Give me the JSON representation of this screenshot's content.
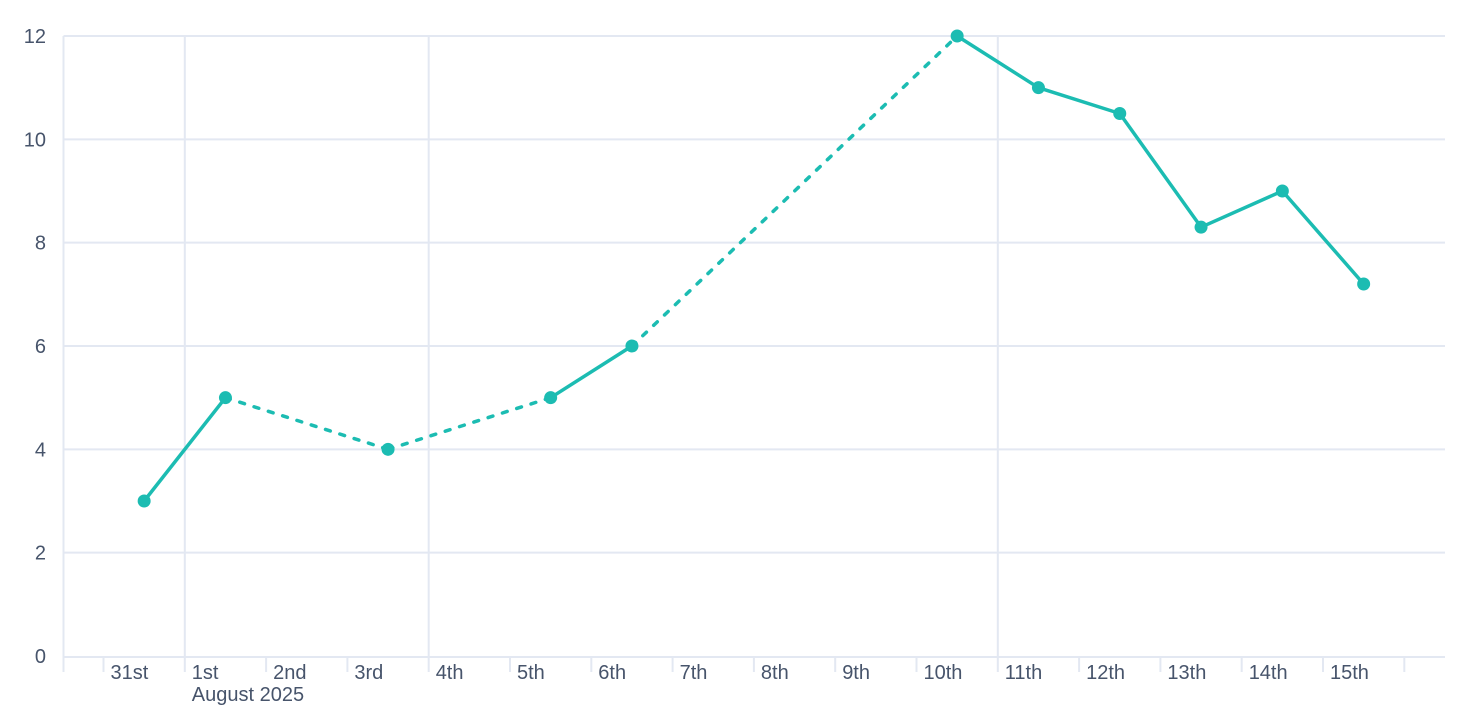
{
  "chart_data": {
    "type": "line",
    "title": "",
    "x_axis": {
      "tick_labels": [
        "31st",
        "1st",
        "2nd",
        "3rd",
        "4th",
        "5th",
        "6th",
        "7th",
        "8th",
        "9th",
        "10th",
        "11th",
        "12th",
        "13th",
        "14th",
        "15th"
      ],
      "month_label": "August 2025",
      "month_label_under": "1st",
      "vertical_gridlines_at": [
        "1st",
        "4th",
        "11th"
      ]
    },
    "y_axis": {
      "tick_values": [
        0,
        2,
        4,
        6,
        8,
        10,
        12
      ],
      "tick_labels": [
        "0",
        "2",
        "4",
        "6",
        "8",
        "10",
        "12"
      ],
      "min": 0,
      "max": 12
    },
    "series": [
      {
        "name": "series-1",
        "color": "#1cbcb2",
        "points": [
          {
            "x": "31st",
            "value": 3,
            "style_to_next": "solid"
          },
          {
            "x": "1st",
            "value": 5,
            "style_to_next": "dashed"
          },
          {
            "x": "3rd",
            "value": 4,
            "style_to_next": "dashed"
          },
          {
            "x": "5th",
            "value": 5,
            "style_to_next": "solid"
          },
          {
            "x": "6th",
            "value": 6,
            "style_to_next": "dashed"
          },
          {
            "x": "10th",
            "value": 12,
            "style_to_next": "solid"
          },
          {
            "x": "11th",
            "value": 11,
            "style_to_next": "solid"
          },
          {
            "x": "12th",
            "value": 10.5,
            "style_to_next": "solid"
          },
          {
            "x": "13th",
            "value": 8.3,
            "style_to_next": "solid"
          },
          {
            "x": "14th",
            "value": 9,
            "style_to_next": "solid"
          },
          {
            "x": "15th",
            "value": 7.2,
            "style_to_next": null
          }
        ]
      }
    ],
    "legend": null,
    "grid": {
      "horizontal": true,
      "vertical": "weekly-and-month-start"
    },
    "colors": {
      "line": "#1cbcb2",
      "grid": "#e3e8f2",
      "axis_text": "#47546b",
      "background": "#ffffff"
    }
  }
}
